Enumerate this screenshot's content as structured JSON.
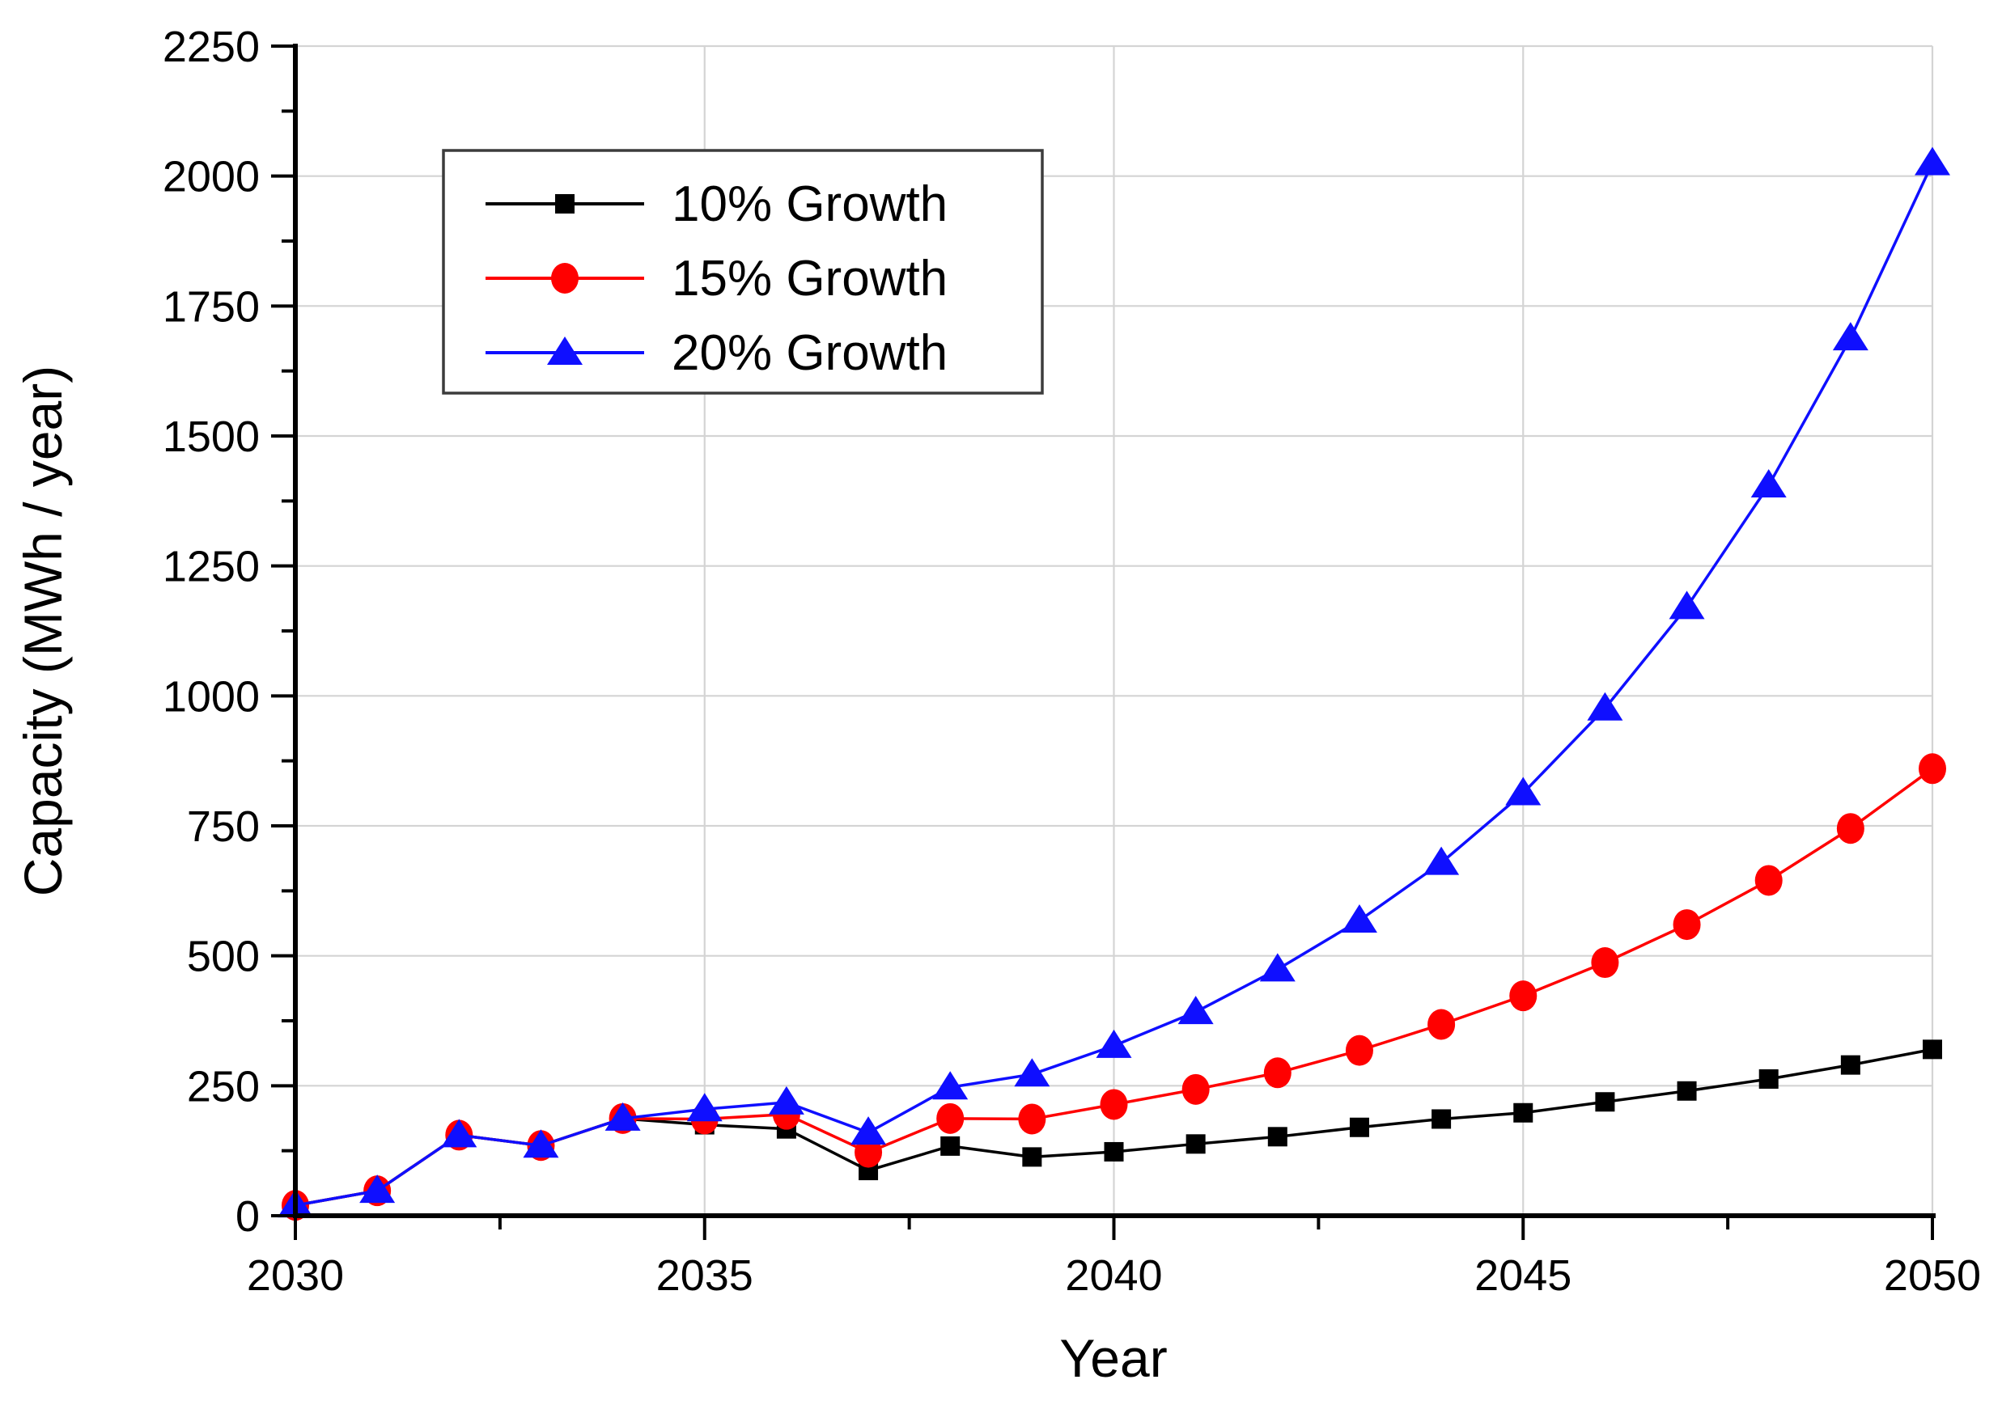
{
  "page": {
    "background": "#ffffff"
  },
  "chart_data": {
    "type": "line",
    "title": "",
    "xlabel": "Year",
    "ylabel": "Capacity (MWh / year)",
    "x": [
      2030,
      2031,
      2032,
      2033,
      2034,
      2035,
      2036,
      2037,
      2038,
      2039,
      2040,
      2041,
      2042,
      2043,
      2044,
      2045,
      2046,
      2047,
      2048,
      2049,
      2050
    ],
    "series": [
      {
        "name": "10% Growth",
        "color": "#000000",
        "marker": "square",
        "values": [
          20,
          48,
          155,
          135,
          187,
          175,
          167,
          87,
          134,
          113,
          123,
          138,
          152,
          170,
          186,
          198,
          219,
          240,
          263,
          290,
          320
        ]
      },
      {
        "name": "15% Growth",
        "color": "#ff0000",
        "marker": "circle",
        "values": [
          20,
          48,
          155,
          135,
          187,
          186,
          195,
          122,
          187,
          186,
          214,
          243,
          275,
          318,
          368,
          423,
          487,
          560,
          645,
          745,
          860
        ]
      },
      {
        "name": "20% Growth",
        "color": "#0f0fff",
        "marker": "triangle",
        "values": [
          20,
          48,
          155,
          135,
          187,
          205,
          218,
          160,
          247,
          272,
          327,
          392,
          474,
          568,
          679,
          813,
          976,
          1171,
          1405,
          1688,
          2025
        ]
      }
    ],
    "xlim": [
      2030,
      2050
    ],
    "ylim": [
      0,
      2250
    ],
    "x_major_ticks": [
      2030,
      2035,
      2040,
      2045,
      2050
    ],
    "x_minor_ticks": [
      2032.5,
      2037.5,
      2042.5,
      2047.5
    ],
    "y_major_ticks": [
      0,
      250,
      500,
      750,
      1000,
      1250,
      1500,
      1750,
      2000,
      2250
    ],
    "y_minor_ticks": [
      125,
      375,
      625,
      875,
      1125,
      1375,
      1625,
      1875,
      2125
    ],
    "grid": true,
    "grid_color": "#d4d4d4",
    "axis_color": "#000000",
    "legend_position": "top-left",
    "legend_border_color": "#3c3c3c",
    "legend_background": "#ffffff"
  }
}
